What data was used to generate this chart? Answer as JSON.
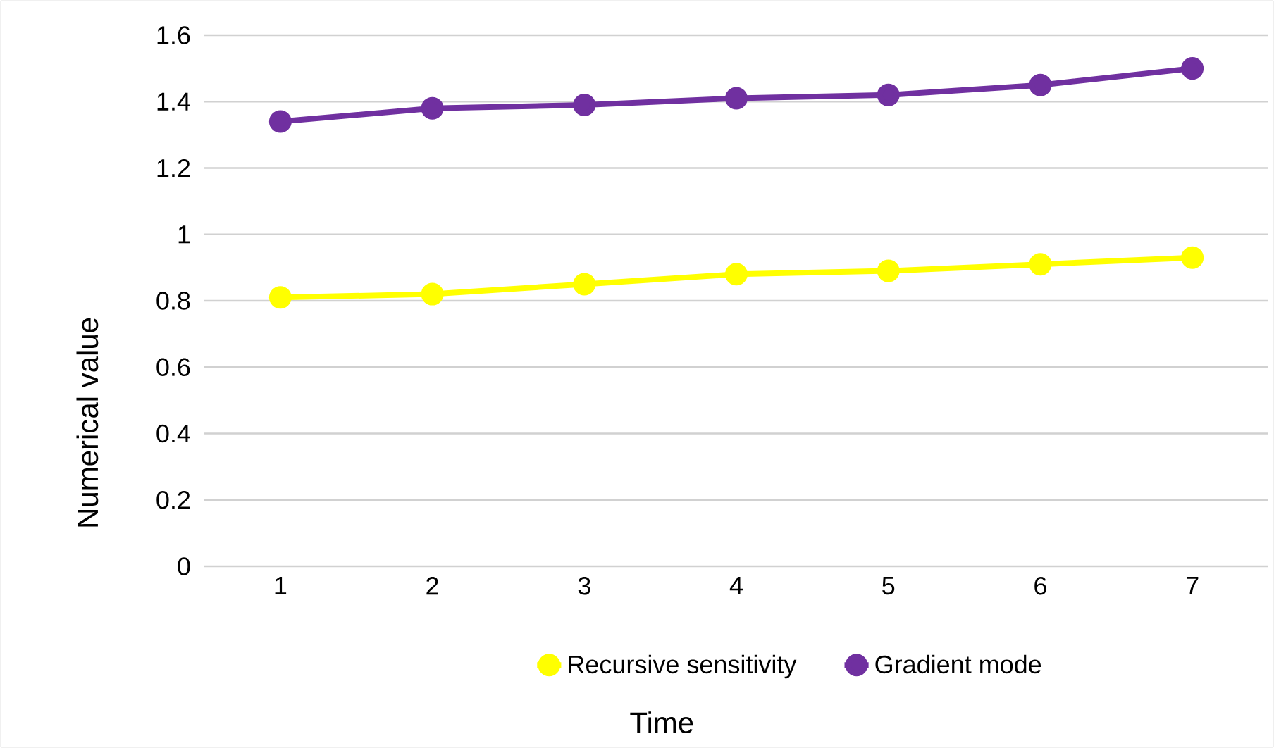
{
  "chart_data": {
    "type": "line",
    "xlabel": "Time",
    "ylabel": "Numerical value",
    "categories": [
      "1",
      "2",
      "3",
      "4",
      "5",
      "6",
      "7"
    ],
    "series": [
      {
        "name": "Recursive sensitivity",
        "color": "#ffff00",
        "values": [
          0.81,
          0.82,
          0.85,
          0.88,
          0.89,
          0.91,
          0.93
        ]
      },
      {
        "name": "Gradient mode",
        "color": "#7030a0",
        "values": [
          1.34,
          1.38,
          1.39,
          1.41,
          1.42,
          1.45,
          1.5
        ]
      }
    ],
    "ylim": [
      0,
      1.6
    ],
    "yticks": [
      0,
      0.2,
      0.4,
      0.6,
      0.8,
      1,
      1.2,
      1.4,
      1.6
    ],
    "grid": "y",
    "legend": "bottom",
    "marker": "circle",
    "line_style": "solid"
  }
}
